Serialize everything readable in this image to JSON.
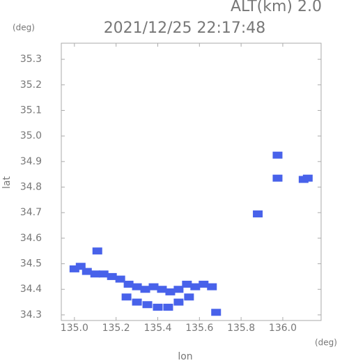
{
  "chart_data": {
    "type": "scatter",
    "title": "2021/12/25 22:17:48",
    "annotation": "ALT(km) 2.0",
    "y_unit": "(deg)",
    "x_unit": "(deg)",
    "x_label": "lon",
    "y_label": "lat",
    "color": "#4862ea",
    "x": [
      135.0,
      135.03,
      135.06,
      135.1,
      135.14,
      135.18,
      135.22,
      135.26,
      135.3,
      135.34,
      135.38,
      135.42,
      135.46,
      135.5,
      135.54,
      135.58,
      135.62,
      135.66,
      135.25,
      135.3,
      135.35,
      135.4,
      135.45,
      135.5,
      135.55,
      135.68,
      135.11,
      135.975,
      135.975,
      136.1,
      136.12,
      135.88
    ],
    "values": [
      34.48,
      34.49,
      34.47,
      34.46,
      34.46,
      34.45,
      34.44,
      34.42,
      34.41,
      34.4,
      34.41,
      34.4,
      34.39,
      34.4,
      34.42,
      34.41,
      34.42,
      34.41,
      34.37,
      34.35,
      34.34,
      34.33,
      34.33,
      34.35,
      34.37,
      34.31,
      34.55,
      34.925,
      34.835,
      34.83,
      34.835,
      34.695
    ],
    "xlim": [
      134.937,
      136.184
    ],
    "ylim": [
      34.278,
      35.363
    ],
    "xticks": [
      {
        "value": 135.0,
        "label": "135.0"
      },
      135.2,
      135.4,
      135.6,
      135.8,
      {
        "value": 136.0,
        "label": "136.0"
      }
    ],
    "yticks": [
      34.3,
      34.4,
      34.5,
      34.6,
      34.7,
      34.8,
      34.9,
      {
        "value": 35.0,
        "label": "35.0"
      },
      35.1,
      35.2,
      35.3
    ]
  }
}
